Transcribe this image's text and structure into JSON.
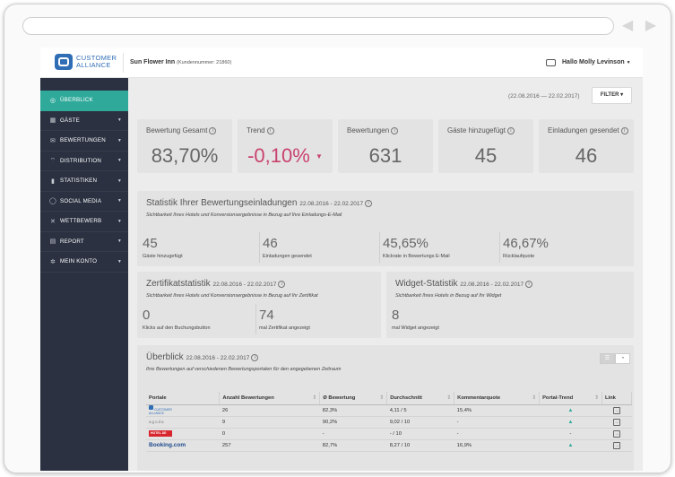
{
  "app": {
    "logo_line1": "CUSTOMER",
    "logo_line2": "ALLIANCE",
    "hotel_name": "Sun Flower Inn",
    "customer_number": "(Kundennummer: 21860)",
    "greeting": "Hallo Molly Levinson"
  },
  "sidebar": {
    "items": [
      {
        "label": "ÜBERBLICK",
        "icon": "compass-icon",
        "glyph": "◎",
        "active": true,
        "caret": ""
      },
      {
        "label": "GÄSTE",
        "icon": "guests-icon",
        "glyph": "▦",
        "active": false,
        "caret": "▼"
      },
      {
        "label": "BEWERTUNGEN",
        "icon": "reviews-icon",
        "glyph": "✉",
        "active": false,
        "caret": "▼"
      },
      {
        "label": "DISTRIBUTION",
        "icon": "wifi-icon",
        "glyph": "⌔",
        "active": false,
        "caret": "▼"
      },
      {
        "label": "STATISTIKEN",
        "icon": "bar-chart-icon",
        "glyph": "▮",
        "active": false,
        "caret": "▼"
      },
      {
        "label": "SOCIAL MEDIA",
        "icon": "chat-icon",
        "glyph": "◯",
        "active": false,
        "caret": "▼"
      },
      {
        "label": "WETTBEWERB",
        "icon": "compare-icon",
        "glyph": "✕",
        "active": false,
        "caret": "▼"
      },
      {
        "label": "REPORT",
        "icon": "report-icon",
        "glyph": "▤",
        "active": false,
        "caret": "▼"
      },
      {
        "label": "MEIN KONTO",
        "icon": "gear-icon",
        "glyph": "✲",
        "active": false,
        "caret": "▼"
      }
    ]
  },
  "header": {
    "date_range": "(22.08.2016 — 22.02.2017)",
    "filter_label": "FILTER ▾"
  },
  "kpis": [
    {
      "label": "Bewertung Gesamt",
      "value": "83,70%",
      "negative": false
    },
    {
      "label": "Trend",
      "value": "-0,10%",
      "negative": true
    },
    {
      "label": "Bewertungen",
      "value": "631",
      "negative": false
    },
    {
      "label": "Gäste hinzugefügt",
      "value": "45",
      "negative": false
    },
    {
      "label": "Einladungen gesendet",
      "value": "46",
      "negative": false
    }
  ],
  "invites": {
    "title": "Statistik Ihrer Bewertungseinladungen",
    "dates": "22.08.2016 - 22.02.2017",
    "subtitle": "Sichtbarkeit Ihres Hotels und Konversionsergebnisse in Bezug auf Ihre Einladungs-E-Mail",
    "stats": [
      {
        "value": "45",
        "label": "Gäste hinzugefügt"
      },
      {
        "value": "46",
        "label": "Einladungen gesendet"
      },
      {
        "value": "45,65%",
        "label": "Klickrate in Bewertungs E-Mail"
      },
      {
        "value": "46,67%",
        "label": "Rücklaufquote"
      }
    ]
  },
  "certificate": {
    "title": "Zertifikatstatistik",
    "dates": "22.08.2016 - 22.02.2017",
    "subtitle": "Sichtbarkeit Ihres Hotels und Konversionsergebnisse in Bezug auf Ihr Zertifikat",
    "stats": [
      {
        "value": "0",
        "label": "Klicks auf den Buchungsbutton"
      },
      {
        "value": "74",
        "label": "mal Zertifikat angezeigt"
      }
    ]
  },
  "widget": {
    "title": "Widget-Statistik",
    "dates": "22.08.2016 - 22.02.2017",
    "subtitle": "Sichtbarkeit Ihres Hotels in Bezug auf Ihr Widget",
    "stats": [
      {
        "value": "8",
        "label": "mal Widget angezeigt"
      }
    ]
  },
  "overview": {
    "title": "Überblick",
    "dates": "22.08.2016 - 22.02.2017",
    "subtitle": "Ihre Bewertungen auf verschiedenen Bewertungsportalen für den angegebenen Zeitraum",
    "columns": [
      "Portale",
      "Anzahl Bewertungen",
      "Ø Bewertung",
      "Durchschnitt",
      "Kommentarquote",
      "Portal-Trend",
      "Link"
    ],
    "rows": [
      {
        "portal": "CUSTOMER ALLIANCE",
        "count": "26",
        "rating": "82,3%",
        "average": "4,11 / 5",
        "comment_rate": "15,4%",
        "trend": "▲"
      },
      {
        "portal": "agoda",
        "count": "9",
        "rating": "90,2%",
        "average": "9,02 / 10",
        "comment_rate": "-",
        "trend": "▲"
      },
      {
        "portal": "HOTEL DE",
        "count": "0",
        "rating": "-",
        "average": "- / 10",
        "comment_rate": "-",
        "trend": "-"
      },
      {
        "portal": "Booking.com",
        "count": "257",
        "rating": "82,7%",
        "average": "8,27 / 10",
        "comment_rate": "16,9%",
        "trend": "▲"
      }
    ]
  },
  "colors": {
    "accent": "#2fa99a",
    "sidebar": "#2b3141",
    "negative": "#c9436d",
    "brand": "#2f6db5"
  }
}
